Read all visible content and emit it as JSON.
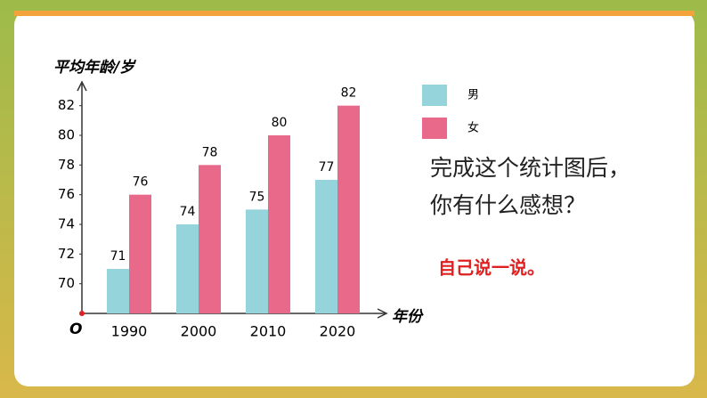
{
  "chart_data": {
    "type": "bar",
    "y_axis_label": "平均年龄/岁",
    "x_axis_label": "年份",
    "origin_label": "O",
    "categories": [
      "1990",
      "2000",
      "2010",
      "2020"
    ],
    "series": [
      {
        "name": "男",
        "color": "#96d4dc",
        "values": [
          71,
          74,
          75,
          77
        ]
      },
      {
        "name": "女",
        "color": "#e8698a",
        "values": [
          76,
          78,
          80,
          82
        ]
      }
    ],
    "ylim": [
      68,
      83
    ],
    "yticks": [
      70,
      72,
      74,
      76,
      78,
      80,
      82
    ]
  },
  "prompt": {
    "line1": "完成这个统计图后，",
    "line2": "你有什么感想？",
    "hint": "自己说一说。"
  }
}
